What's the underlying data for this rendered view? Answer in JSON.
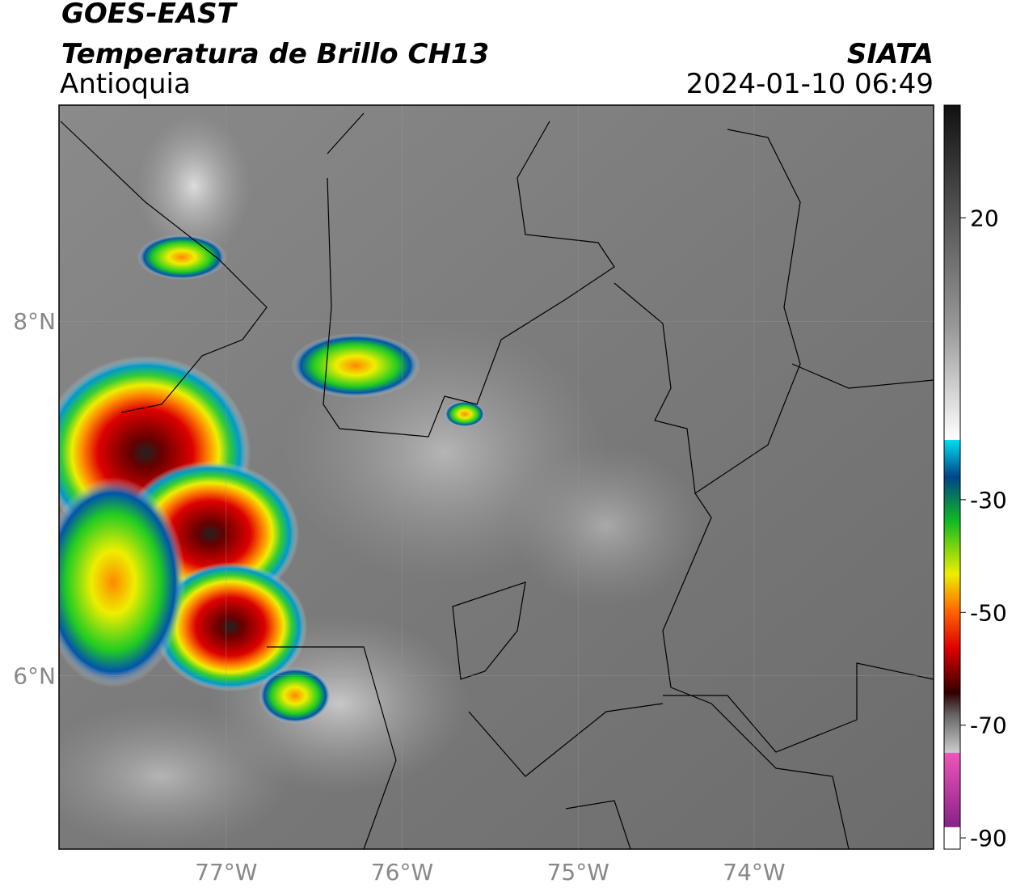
{
  "header": {
    "title": "GOES-EAST",
    "subtitle": "Temperatura de Brillo CH13",
    "region": "Antioquia",
    "source": "SIATA",
    "datetime": "2024-01-10 06:49"
  },
  "map": {
    "xlim": [
      -77.95,
      -72.98
    ],
    "ylim": [
      5.02,
      9.22
    ],
    "xticks": [
      {
        "value": -77,
        "label": "77°W"
      },
      {
        "value": -76,
        "label": "76°W"
      },
      {
        "value": -75,
        "label": "75°W"
      },
      {
        "value": -74,
        "label": "74°W"
      }
    ],
    "yticks": [
      {
        "value": 8,
        "label": "8°N"
      },
      {
        "value": 6,
        "label": "6°N"
      }
    ]
  },
  "colorbar": {
    "range": [
      -92,
      40
    ],
    "ticks": [
      20,
      -30,
      -50,
      -70,
      -90
    ]
  }
}
